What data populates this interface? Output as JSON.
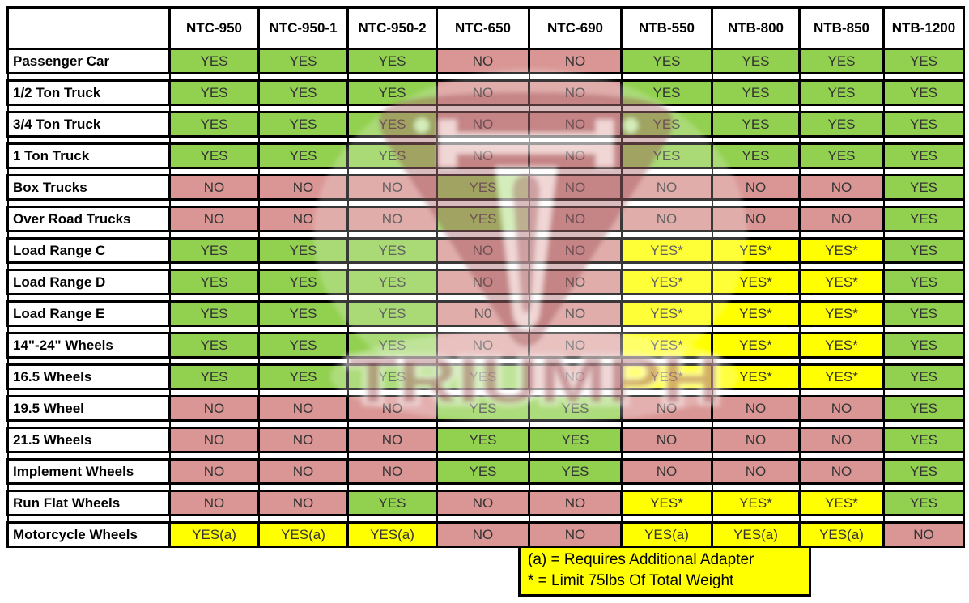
{
  "colors": {
    "green": "#92D050",
    "red": "#D99694",
    "yellow": "#FFFF00",
    "border": "#000000",
    "watermark_maroon": "#8C333B"
  },
  "watermark": {
    "text": "TRIUMPH"
  },
  "chart_data": {
    "type": "table",
    "corner_label": "",
    "columns": [
      "NTC-950",
      "NTC-950-1",
      "NTC-950-2",
      "NTC-650",
      "NTC-690",
      "NTB-550",
      "NTB-800",
      "NTB-850",
      "NTB-1200"
    ],
    "rows": [
      {
        "label": "Passenger Car",
        "values": [
          "YES",
          "YES",
          "YES",
          "NO",
          "NO",
          "YES",
          "YES",
          "YES",
          "YES"
        ]
      },
      {
        "label": "1/2 Ton Truck",
        "values": [
          "YES",
          "YES",
          "YES",
          "NO",
          "NO",
          "YES",
          "YES",
          "YES",
          "YES"
        ]
      },
      {
        "label": "3/4 Ton Truck",
        "values": [
          "YES",
          "YES",
          "YES",
          "NO",
          "NO",
          "YES",
          "YES",
          "YES",
          "YES"
        ]
      },
      {
        "label": "1 Ton Truck",
        "values": [
          "YES",
          "YES",
          "YES",
          "NO",
          "NO",
          "YES",
          "YES",
          "YES",
          "YES"
        ]
      },
      {
        "label": "Box Trucks",
        "values": [
          "NO",
          "NO",
          "NO",
          "YES",
          "NO",
          "NO",
          "NO",
          "NO",
          "YES"
        ]
      },
      {
        "label": "Over Road Trucks",
        "values": [
          "NO",
          "NO",
          "NO",
          "YES",
          "NO",
          "NO",
          "NO",
          "NO",
          "YES"
        ]
      },
      {
        "label": "Load Range C",
        "values": [
          "YES",
          "YES",
          "YES",
          "NO",
          "NO",
          "YES*",
          "YES*",
          "YES*",
          "YES"
        ]
      },
      {
        "label": "Load Range D",
        "values": [
          "YES",
          "YES",
          "YES",
          "NO",
          "NO",
          "YES*",
          "YES*",
          "YES*",
          "YES"
        ]
      },
      {
        "label": "Load Range E",
        "values": [
          "YES",
          "YES",
          "YES",
          "N0",
          "NO",
          "YES*",
          "YES*",
          "YES*",
          "YES"
        ]
      },
      {
        "label": "14\"-24\" Wheels",
        "values": [
          "YES",
          "YES",
          "YES",
          "NO",
          "NO",
          "YES*",
          "YES*",
          "YES*",
          "YES"
        ]
      },
      {
        "label": "16.5 Wheels",
        "values": [
          "YES",
          "YES",
          "YES",
          "YES",
          "NO",
          "YES*",
          "YES*",
          "YES*",
          "YES"
        ]
      },
      {
        "label": "19.5 Wheel",
        "values": [
          "NO",
          "NO",
          "NO",
          "YES",
          "YES",
          "NO",
          "NO",
          "NO",
          "YES"
        ]
      },
      {
        "label": "21.5 Wheels",
        "values": [
          "NO",
          "NO",
          "NO",
          "YES",
          "YES",
          "NO",
          "NO",
          "NO",
          "YES"
        ]
      },
      {
        "label": "Implement Wheels",
        "values": [
          "NO",
          "NO",
          "NO",
          "YES",
          "YES",
          "NO",
          "NO",
          "NO",
          "YES"
        ]
      },
      {
        "label": "Run Flat Wheels",
        "values": [
          "NO",
          "NO",
          "YES",
          "NO",
          "NO",
          "YES*",
          "YES*",
          "YES*",
          "YES"
        ]
      },
      {
        "label": "Motorcycle Wheels",
        "values": [
          "YES(a)",
          "YES(a)",
          "YES(a)",
          "NO",
          "NO",
          "YES(a)",
          "YES(a)",
          "YES(a)",
          "NO"
        ]
      }
    ],
    "value_color_map": {
      "YES": "green",
      "NO": "red",
      "N0": "red",
      "YES*": "yellow",
      "YES(a)": "yellow"
    },
    "legend": [
      "(a) = Requires Additional Adapter",
      "* = Limit 75lbs Of Total Weight"
    ]
  }
}
